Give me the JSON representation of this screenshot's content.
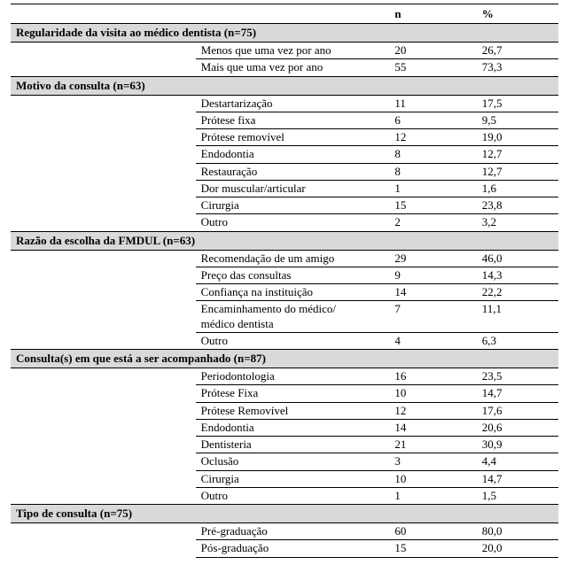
{
  "colors": {
    "section_bg": "#d9d9d9",
    "border": "#000000",
    "text": "#000000",
    "background": "#ffffff"
  },
  "typography": {
    "family": "Times New Roman",
    "base_size_pt": 10,
    "header_bold": true,
    "section_bold": true
  },
  "columns": {
    "n_header": "n",
    "pct_header": "%"
  },
  "sections": [
    {
      "title": "Regularidade da visita ao médico dentista (n=75)",
      "rows": [
        {
          "label": "Menos que uma vez por ano",
          "n": "20",
          "pct": "26,7"
        },
        {
          "label": "Mais que uma vez por ano",
          "n": "55",
          "pct": "73,3"
        }
      ]
    },
    {
      "title": "Motivo da consulta (n=63)",
      "rows": [
        {
          "label": "Destartarização",
          "n": "11",
          "pct": "17,5"
        },
        {
          "label": "Prótese fixa",
          "n": "6",
          "pct": "9,5"
        },
        {
          "label": "Prótese removível",
          "n": "12",
          "pct": "19,0"
        },
        {
          "label": "Endodontia",
          "n": "8",
          "pct": "12,7"
        },
        {
          "label": "Restauração",
          "n": "8",
          "pct": "12,7"
        },
        {
          "label": "Dor muscular/articular",
          "n": "1",
          "pct": "1,6"
        },
        {
          "label": "Cirurgia",
          "n": "15",
          "pct": "23,8"
        },
        {
          "label": "Outro",
          "n": "2",
          "pct": "3,2"
        }
      ]
    },
    {
      "title": "Razão da escolha da FMDUL (n=63)",
      "rows": [
        {
          "label": "Recomendação de um amigo",
          "n": "29",
          "pct": "46,0"
        },
        {
          "label": "Preço das consultas",
          "n": "9",
          "pct": "14,3"
        },
        {
          "label": "Confiança na instituição",
          "n": "14",
          "pct": "22,2"
        },
        {
          "label": "Encaminhamento do médico/\nmédico dentista",
          "n": "7",
          "pct": "11,1"
        },
        {
          "label": "Outro",
          "n": "4",
          "pct": "6,3"
        }
      ]
    },
    {
      "title": "Consulta(s) em que está a ser acompanhado (n=87)",
      "rows": [
        {
          "label": "Periodontologia",
          "n": "16",
          "pct": "23,5"
        },
        {
          "label": "Prótese Fixa",
          "n": "10",
          "pct": "14,7"
        },
        {
          "label": "Prótese Removível",
          "n": "12",
          "pct": "17,6"
        },
        {
          "label": "Endodontia",
          "n": "14",
          "pct": "20,6"
        },
        {
          "label": "Dentisteria",
          "n": " 21",
          "pct": "30,9"
        },
        {
          "label": "Oclusão",
          "n": "3",
          "pct": "4,4"
        },
        {
          "label": "Cirurgia",
          "n": "10",
          "pct": "14,7"
        },
        {
          "label": "Outro",
          "n": "1",
          "pct": "1,5"
        }
      ]
    },
    {
      "title": "Tipo de consulta (n=75)",
      "rows": [
        {
          "label": "Pré-graduação",
          "n": "60",
          "pct": "80,0"
        },
        {
          "label": "Pós-graduação",
          "n": "15",
          "pct": "20,0"
        }
      ]
    }
  ]
}
